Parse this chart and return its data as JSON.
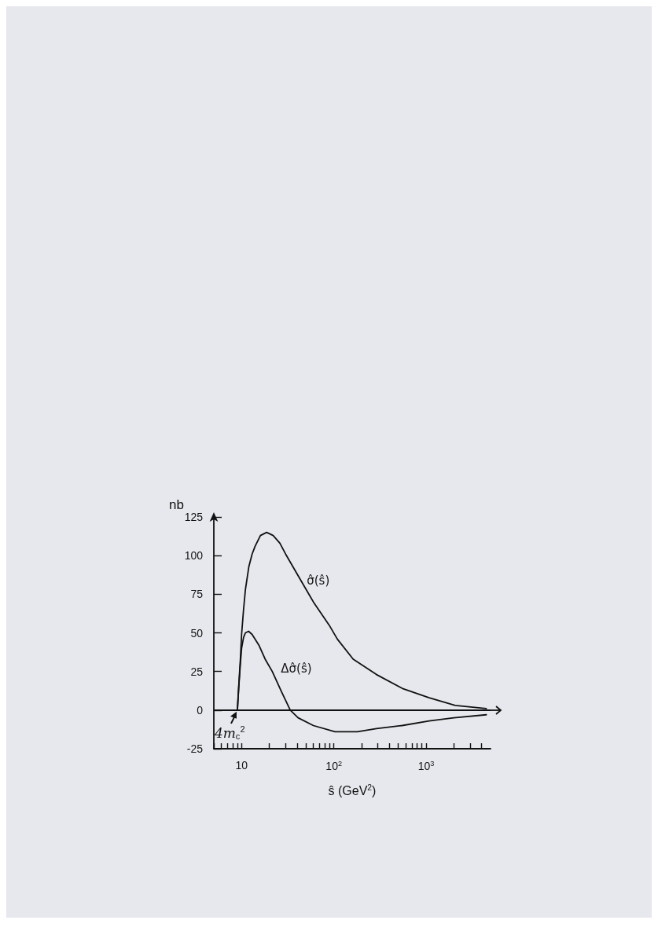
{
  "chart_data": {
    "type": "line",
    "xlabel": "ŝ (GeV$^{2}$)",
    "ylabel": "nb",
    "log": "x",
    "xlim": [
      5,
      5000
    ],
    "ylim": [
      -25,
      125
    ],
    "xticks": [
      {
        "value": 5,
        "label": null
      },
      {
        "value": 6,
        "label": null
      },
      {
        "value": 7,
        "label": null
      },
      {
        "value": 8,
        "label": null
      },
      {
        "value": 9,
        "label": null
      },
      10,
      {
        "value": 20,
        "label": null
      },
      {
        "value": 30,
        "label": null
      },
      {
        "value": 40,
        "label": null
      },
      {
        "value": 50,
        "label": null
      },
      {
        "value": 60,
        "label": null
      },
      {
        "value": 70,
        "label": null
      },
      {
        "value": 80,
        "label": null
      },
      {
        "value": 90,
        "label": null
      },
      {
        "value": 100,
        "label": "10$^{2}$"
      },
      {
        "value": 200,
        "label": null
      },
      {
        "value": 300,
        "label": null
      },
      {
        "value": 400,
        "label": null
      },
      {
        "value": 500,
        "label": null
      },
      {
        "value": 600,
        "label": null
      },
      {
        "value": 700,
        "label": null
      },
      {
        "value": 800,
        "label": null
      },
      {
        "value": 900,
        "label": null
      },
      {
        "value": 1000,
        "label": "10$^{3}$"
      },
      {
        "value": 2000,
        "label": null
      },
      {
        "value": 3000,
        "label": null
      },
      {
        "value": 4000,
        "label": null
      }
    ],
    "yticks": [
      -25,
      0,
      25,
      50,
      75,
      100,
      125
    ],
    "grid": false,
    "legend": false,
    "marker": "none",
    "line_style": "solid",
    "series": [
      {
        "name": "σ̂(ŝ)",
        "color": "#111111",
        "x": [
          9,
          9.3,
          9.7,
          10,
          10.5,
          11,
          12,
          13,
          14,
          16,
          18.7,
          22,
          26,
          30,
          41,
          60,
          89,
          109,
          162,
          290,
          555,
          1080,
          2070,
          4500
        ],
        "values": [
          0,
          15,
          33,
          49,
          65,
          78,
          93,
          101,
          106,
          113,
          115,
          113,
          108,
          101,
          87,
          70,
          55,
          46,
          33,
          23,
          14,
          8,
          3,
          1
        ]
      },
      {
        "name": "Δσ̂(ŝ)",
        "color": "#111111",
        "x": [
          9,
          9.3,
          9.7,
          10,
          10.5,
          11,
          11.9,
          13,
          15.4,
          18,
          21.5,
          27,
          33.7,
          41,
          60,
          103,
          180,
          290,
          550,
          1080,
          2000,
          4500
        ],
        "values": [
          0,
          14,
          30,
          40,
          47,
          50,
          51,
          49,
          42,
          33,
          25,
          12,
          0,
          -5,
          -10,
          -14,
          -14,
          -12,
          -10,
          -7,
          -5,
          -3
        ]
      }
    ],
    "ref_lines": [
      {
        "axis": "y",
        "value": 0,
        "color": "#111111"
      }
    ],
    "annotations": [
      {
        "text": "4m$_{c}$$^{2}$",
        "x": 9,
        "y": 0
      }
    ]
  }
}
